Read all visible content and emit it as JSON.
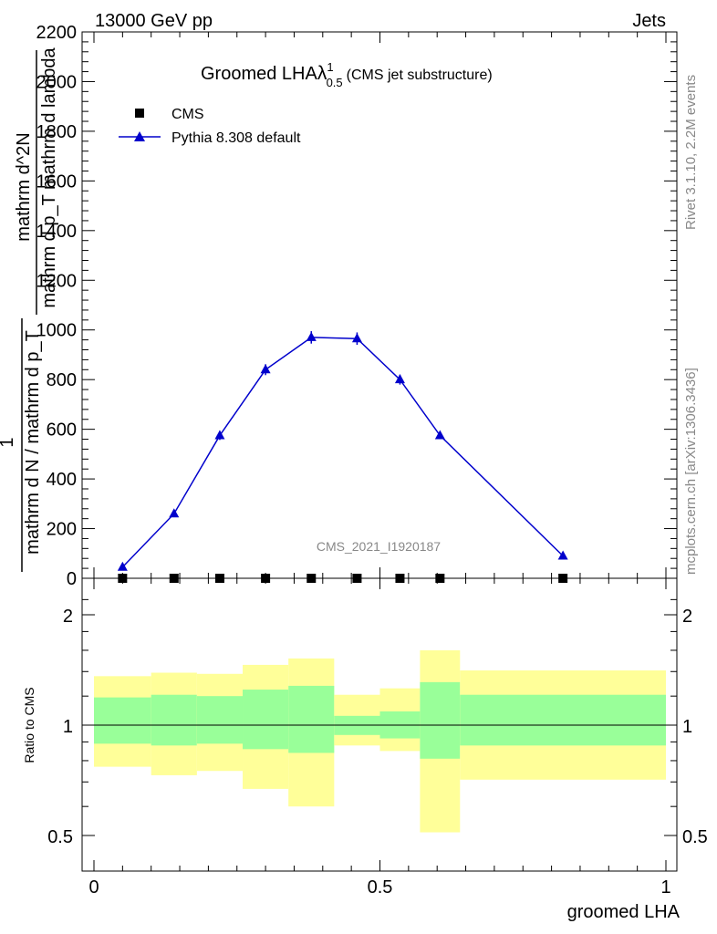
{
  "header": {
    "energy_label": "13000 GeV pp",
    "process_label": "Jets"
  },
  "side_labels": {
    "rivet": "Rivet 3.1.10,  2.2M events",
    "mcplots": "mcplots.cern.ch [arXiv:1306.3436]"
  },
  "chart_data": [
    {
      "type": "line",
      "title": "Groomed LHA",
      "title_symbol": "λ",
      "title_superscript": "1",
      "title_subscript": "0.5",
      "subtitle": "(CMS jet substructure)",
      "watermark": "CMS_2021_I1920187",
      "ylabel": {
        "numerator": "1",
        "denominator": "mathrm d N / mathrm d p_T",
        "numerator2": "mathrm d^2N",
        "denominator2": "mathrm d p_T  mathrm d lambda"
      },
      "ylabel_lines": [
        "mathrm d²N",
        "mathrm d p",
        "T",
        "mathrm d lambda",
        "1",
        "mathrm d N / mathrm d p",
        "T"
      ],
      "ylim": [
        0,
        2200
      ],
      "yticks": [
        0,
        200,
        400,
        600,
        800,
        1000,
        1200,
        1400,
        1600,
        1800,
        2000,
        2200
      ],
      "ytick_labels": [
        "0",
        "200",
        "400",
        "600",
        "800",
        "1000",
        "1200",
        "1400",
        "1600",
        "1800",
        "2000",
        "2200"
      ],
      "xlim": [
        -0.02,
        1.0
      ],
      "legend": {
        "placement": "top-left",
        "entries": [
          "CMS",
          "Pythia 8.308 default"
        ]
      },
      "series": [
        {
          "name": "CMS",
          "marker": "square",
          "color": "#000000",
          "x": [
            0.05,
            0.14,
            0.22,
            0.3,
            0.38,
            0.46,
            0.535,
            0.605,
            0.82
          ],
          "y": [
            0,
            0,
            0,
            0,
            0,
            0,
            0,
            0,
            0
          ]
        },
        {
          "name": "Pythia 8.308 default",
          "marker": "triangle",
          "color": "#0000cc",
          "x": [
            0.05,
            0.14,
            0.22,
            0.3,
            0.38,
            0.46,
            0.535,
            0.605,
            0.82
          ],
          "y": [
            45,
            260,
            575,
            840,
            970,
            965,
            800,
            575,
            90
          ],
          "yerr": [
            8,
            12,
            18,
            22,
            25,
            25,
            20,
            15,
            8
          ]
        }
      ]
    },
    {
      "type": "area",
      "ylabel": "Ratio to CMS",
      "xlabel": "groomed LHA",
      "xlim": [
        -0.02,
        1.0
      ],
      "xticks": [
        0,
        0.5,
        1
      ],
      "xtick_labels": [
        "0",
        "0.5",
        "1"
      ],
      "ylim": [
        0.35,
        2.3
      ],
      "yticks": [
        0.5,
        1,
        2
      ],
      "ytick_labels": [
        "0.5",
        "1",
        "2"
      ],
      "reference_line": 1,
      "bins": [
        {
          "lo": 0.0,
          "hi": 0.1,
          "inner": [
            0.89,
            1.19
          ],
          "outer": [
            0.77,
            1.36
          ]
        },
        {
          "lo": 0.1,
          "hi": 0.18,
          "inner": [
            0.88,
            1.21
          ],
          "outer": [
            0.73,
            1.39
          ]
        },
        {
          "lo": 0.18,
          "hi": 0.26,
          "inner": [
            0.89,
            1.2
          ],
          "outer": [
            0.75,
            1.38
          ]
        },
        {
          "lo": 0.26,
          "hi": 0.34,
          "inner": [
            0.86,
            1.25
          ],
          "outer": [
            0.67,
            1.46
          ]
        },
        {
          "lo": 0.34,
          "hi": 0.42,
          "inner": [
            0.84,
            1.28
          ],
          "outer": [
            0.6,
            1.52
          ]
        },
        {
          "lo": 0.42,
          "hi": 0.5,
          "inner": [
            0.94,
            1.06
          ],
          "outer": [
            0.88,
            1.21
          ]
        },
        {
          "lo": 0.5,
          "hi": 0.57,
          "inner": [
            0.92,
            1.09
          ],
          "outer": [
            0.85,
            1.26
          ]
        },
        {
          "lo": 0.57,
          "hi": 0.64,
          "inner": [
            0.81,
            1.31
          ],
          "outer": [
            0.51,
            1.6
          ]
        },
        {
          "lo": 0.64,
          "hi": 1.0,
          "inner": [
            0.88,
            1.21
          ],
          "outer": [
            0.71,
            1.41
          ]
        }
      ],
      "colors": {
        "inner": "#99ff99",
        "outer": "#ffff99"
      }
    }
  ]
}
